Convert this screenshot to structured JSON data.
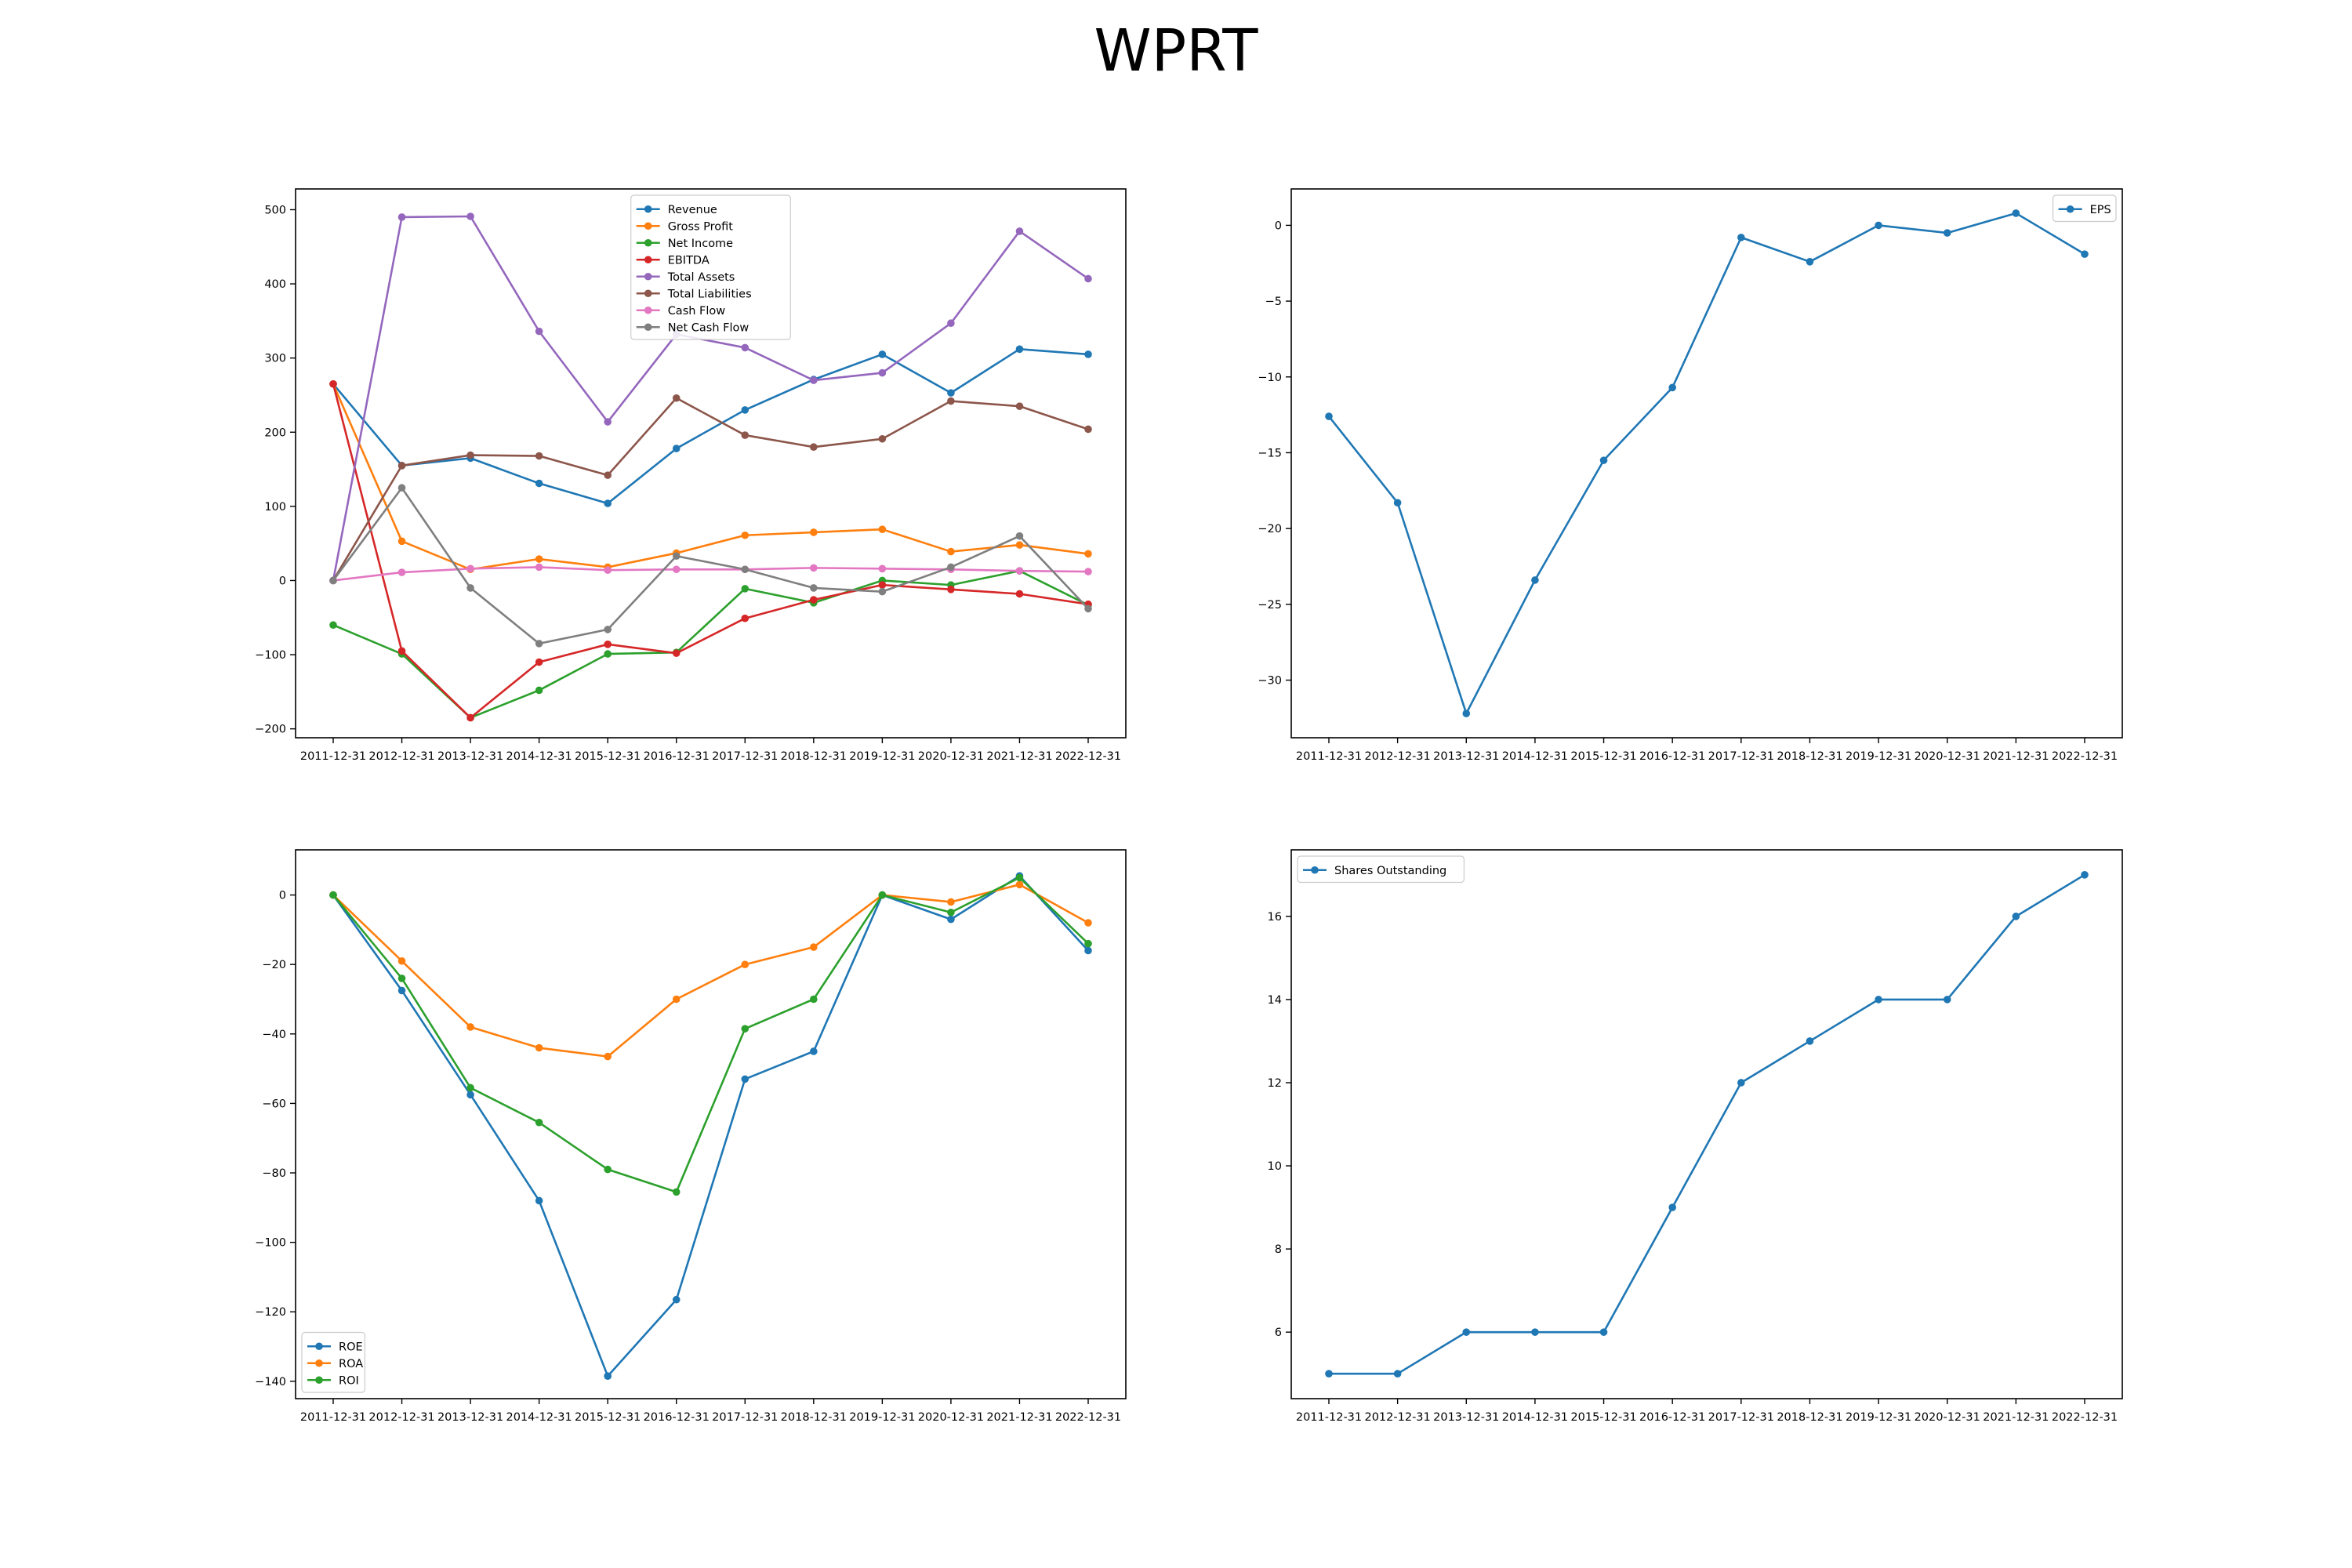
{
  "figure": {
    "title": "WPRT"
  },
  "chart_data": [
    {
      "type": "line",
      "title": "",
      "xlabel": "",
      "ylabel": "",
      "categories": [
        "2011-12-31",
        "2012-12-31",
        "2013-12-31",
        "2014-12-31",
        "2015-12-31",
        "2016-12-31",
        "2017-12-31",
        "2018-12-31",
        "2019-12-31",
        "2020-12-31",
        "2021-12-31",
        "2022-12-31"
      ],
      "ylim": [
        -212,
        528
      ],
      "yticks": [
        -200,
        -100,
        0,
        100,
        200,
        300,
        400,
        500
      ],
      "grid": false,
      "legend": "top-center",
      "series": [
        {
          "name": "Revenue",
          "color": "#1f77b4",
          "values": [
            265,
            155,
            165,
            131,
            104,
            178,
            230,
            271,
            305,
            253,
            312,
            305
          ]
        },
        {
          "name": "Gross Profit",
          "color": "#ff7f0e",
          "values": [
            265,
            53,
            15,
            29,
            18,
            37,
            61,
            65,
            69,
            39,
            48,
            36
          ]
        },
        {
          "name": "Net Income",
          "color": "#2ca02c",
          "values": [
            -60,
            -99,
            -185,
            -148,
            -99,
            -97,
            -11,
            -30,
            0,
            -6,
            13,
            -33
          ]
        },
        {
          "name": "EBITDA",
          "color": "#d62728",
          "values": [
            265,
            -95,
            -185,
            -110,
            -86,
            -98,
            -51,
            -26,
            -6,
            -12,
            -18,
            -32
          ]
        },
        {
          "name": "Total Assets",
          "color": "#9467bd",
          "values": [
            0,
            490,
            491,
            336,
            214,
            332,
            314,
            270,
            280,
            347,
            471,
            407
          ]
        },
        {
          "name": "Total Liabilities",
          "color": "#8c564b",
          "values": [
            0,
            155,
            169,
            168,
            142,
            246,
            196,
            180,
            191,
            242,
            235,
            204
          ]
        },
        {
          "name": "Cash Flow",
          "color": "#e377c2",
          "values": [
            0,
            11,
            16,
            18,
            14,
            15,
            15,
            17,
            16,
            15,
            13,
            12
          ]
        },
        {
          "name": "Net Cash Flow",
          "color": "#7f7f7f",
          "values": [
            0,
            125,
            -10,
            -85,
            -66,
            33,
            15,
            -10,
            -15,
            18,
            60,
            -38
          ]
        }
      ]
    },
    {
      "type": "line",
      "title": "",
      "xlabel": "",
      "ylabel": "",
      "categories": [
        "2011-12-31",
        "2012-12-31",
        "2013-12-31",
        "2014-12-31",
        "2015-12-31",
        "2016-12-31",
        "2017-12-31",
        "2018-12-31",
        "2019-12-31",
        "2020-12-31",
        "2021-12-31",
        "2022-12-31"
      ],
      "ylim": [
        -33.8,
        2.4
      ],
      "yticks": [
        -30,
        -25,
        -20,
        -15,
        -10,
        -5,
        0
      ],
      "grid": false,
      "legend": "top-right",
      "series": [
        {
          "name": "EPS",
          "color": "#1f77b4",
          "values": [
            -12.6,
            -18.3,
            -32.2,
            -23.4,
            -15.5,
            -10.7,
            -0.8,
            -2.4,
            0.0,
            -0.5,
            0.8,
            -1.9
          ]
        }
      ]
    },
    {
      "type": "line",
      "title": "",
      "xlabel": "",
      "ylabel": "",
      "categories": [
        "2011-12-31",
        "2012-12-31",
        "2013-12-31",
        "2014-12-31",
        "2015-12-31",
        "2016-12-31",
        "2017-12-31",
        "2018-12-31",
        "2019-12-31",
        "2020-12-31",
        "2021-12-31",
        "2022-12-31"
      ],
      "ylim": [
        -145,
        13
      ],
      "yticks": [
        -140,
        -120,
        -100,
        -80,
        -60,
        -40,
        -20,
        0
      ],
      "grid": false,
      "legend": "bottom-left",
      "series": [
        {
          "name": "ROE",
          "color": "#1f77b4",
          "values": [
            0,
            -27.5,
            -57.5,
            -88,
            -138.5,
            -116.5,
            -53,
            -45,
            0,
            -7,
            5.5,
            -16
          ]
        },
        {
          "name": "ROA",
          "color": "#ff7f0e",
          "values": [
            0,
            -19,
            -38,
            -44,
            -46.5,
            -30,
            -20,
            -15,
            0,
            -2,
            3,
            -8
          ]
        },
        {
          "name": "ROI",
          "color": "#2ca02c",
          "values": [
            0,
            -24,
            -55.5,
            -65.5,
            -79,
            -85.5,
            -38.5,
            -30,
            0,
            -5,
            5,
            -14
          ]
        }
      ]
    },
    {
      "type": "line",
      "title": "",
      "xlabel": "",
      "ylabel": "",
      "categories": [
        "2011-12-31",
        "2012-12-31",
        "2013-12-31",
        "2014-12-31",
        "2015-12-31",
        "2016-12-31",
        "2017-12-31",
        "2018-12-31",
        "2019-12-31",
        "2020-12-31",
        "2021-12-31",
        "2022-12-31"
      ],
      "ylim": [
        4.4,
        17.6
      ],
      "yticks": [
        6,
        8,
        10,
        12,
        14,
        16
      ],
      "grid": false,
      "legend": "top-left",
      "series": [
        {
          "name": "Shares Outstanding",
          "color": "#1f77b4",
          "values": [
            5,
            5,
            6,
            6,
            6,
            9,
            12,
            13,
            14,
            14,
            16,
            17
          ]
        }
      ]
    }
  ]
}
